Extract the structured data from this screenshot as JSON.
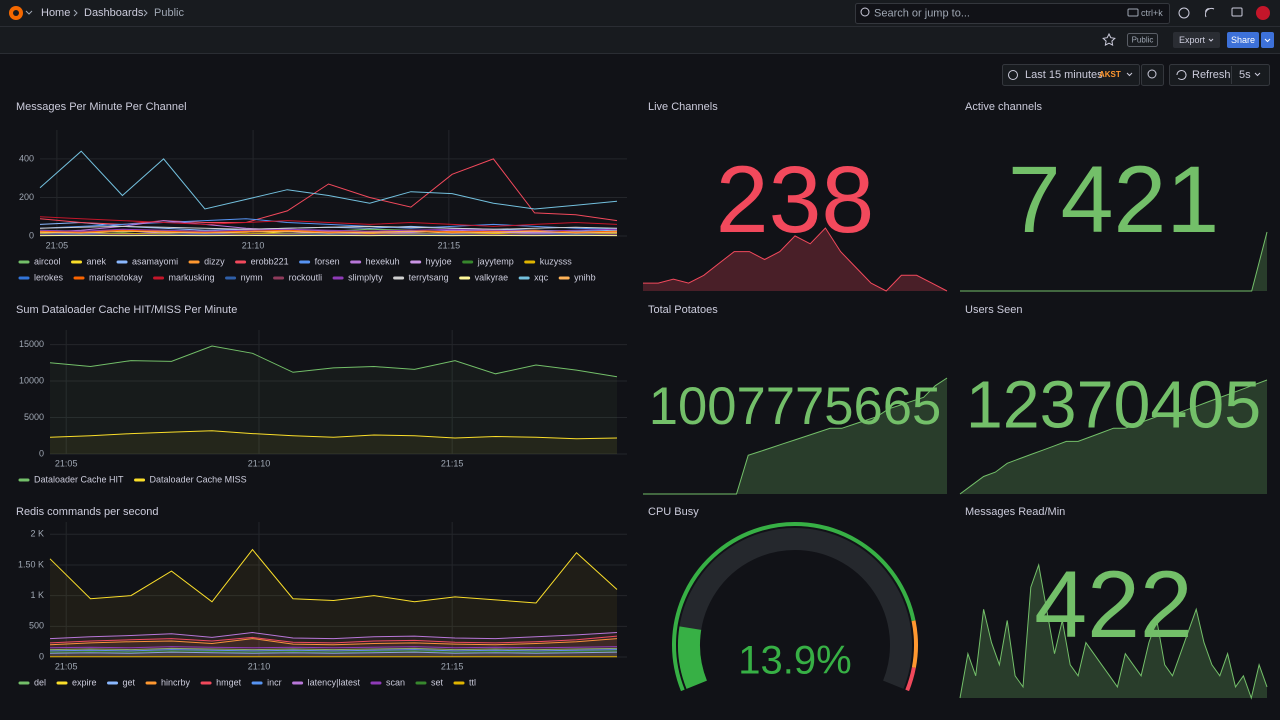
{
  "header": {
    "breadcrumbs": [
      "Home",
      "Dashboards",
      "Public"
    ],
    "search_placeholder": "Search or jump to...",
    "shortcut": "ctrl+k"
  },
  "toolbar": {
    "badge": "Public",
    "export": "Export",
    "share": "Share"
  },
  "time_picker": {
    "range": "Last 15 minutes",
    "timezone": "AKST",
    "refresh": "Refresh",
    "interval": "5s"
  },
  "panels": [
    {
      "type": "timeseries",
      "title": "Messages Per Minute Per Channel",
      "xlim": [
        0,
        14
      ],
      "xticks": [
        {
          "value": 0.41,
          "label": "21:05"
        },
        {
          "value": 5.17,
          "label": "21:10"
        },
        {
          "value": 9.92,
          "label": "21:15"
        }
      ],
      "ylim": [
        0,
        550
      ],
      "yticks": [
        0,
        200,
        400
      ],
      "fill": false,
      "series": [
        {
          "name": "aircool",
          "color": "#73bf69",
          "values": [
            30,
            25,
            20,
            30,
            25,
            20,
            30,
            25,
            35,
            30,
            20,
            25,
            30,
            25,
            20
          ]
        },
        {
          "name": "anek",
          "color": "#fade2a",
          "values": [
            15,
            20,
            10,
            15,
            20,
            25,
            15,
            10,
            20,
            15,
            10,
            15,
            20,
            15,
            10
          ]
        },
        {
          "name": "asamayomi",
          "color": "#8ab8ff",
          "values": [
            60,
            70,
            50,
            40,
            30,
            35,
            40,
            45,
            40,
            50,
            40,
            35,
            30,
            25,
            30
          ]
        },
        {
          "name": "dizzy",
          "color": "#ff9830",
          "values": [
            20,
            25,
            30,
            20,
            15,
            20,
            25,
            20,
            15,
            20,
            25,
            20,
            15,
            20,
            25
          ]
        },
        {
          "name": "erobb221",
          "color": "#f2495c",
          "values": [
            90,
            70,
            60,
            80,
            70,
            70,
            130,
            270,
            200,
            150,
            320,
            400,
            120,
            110,
            80
          ]
        },
        {
          "name": "forsen",
          "color": "#5794f2",
          "values": [
            40,
            50,
            60,
            70,
            80,
            90,
            70,
            60,
            50,
            40,
            50,
            60,
            50,
            40,
            35
          ]
        },
        {
          "name": "hexekuh",
          "color": "#b877d9",
          "values": [
            20,
            30,
            50,
            80,
            60,
            40,
            30,
            25,
            20,
            20,
            30,
            25,
            20,
            15,
            20
          ]
        },
        {
          "name": "hyyjoe",
          "color": "#ca95e5",
          "values": [
            10,
            15,
            10,
            20,
            15,
            10,
            15,
            20,
            10,
            15,
            10,
            20,
            15,
            10,
            15
          ]
        },
        {
          "name": "jayytemp",
          "color": "#37872d",
          "values": [
            5,
            8,
            6,
            5,
            7,
            6,
            5,
            8,
            6,
            5,
            7,
            6,
            5,
            8,
            6
          ]
        },
        {
          "name": "kuzysss",
          "color": "#e0b400",
          "values": [
            12,
            10,
            14,
            12,
            10,
            12,
            14,
            12,
            10,
            12,
            14,
            12,
            10,
            12,
            14
          ]
        },
        {
          "name": "lerokes",
          "color": "#3274d9",
          "values": [
            8,
            6,
            9,
            7,
            8,
            6,
            9,
            7,
            8,
            6,
            9,
            7,
            8,
            6,
            9
          ]
        },
        {
          "name": "marisnotokay",
          "color": "#fa6400",
          "values": [
            25,
            20,
            30,
            25,
            20,
            25,
            30,
            20,
            25,
            30,
            20,
            25,
            30,
            20,
            25
          ]
        },
        {
          "name": "markusking",
          "color": "#c4162a",
          "values": [
            100,
            90,
            80,
            70,
            60,
            70,
            80,
            70,
            60,
            70,
            60,
            50,
            60,
            70,
            60
          ]
        },
        {
          "name": "nymn",
          "color": "#2f5fa8",
          "values": [
            10,
            12,
            8,
            10,
            12,
            8,
            10,
            12,
            8,
            10,
            12,
            8,
            10,
            12,
            8
          ]
        },
        {
          "name": "rockoutli",
          "color": "#8f3b5b",
          "values": [
            5,
            4,
            6,
            5,
            4,
            6,
            5,
            4,
            6,
            5,
            4,
            6,
            5,
            4,
            6
          ]
        },
        {
          "name": "slimplyty",
          "color": "#8f3bb8",
          "values": [
            30,
            25,
            35,
            30,
            25,
            30,
            35,
            30,
            25,
            30,
            35,
            30,
            25,
            30,
            35
          ]
        },
        {
          "name": "terrytsang",
          "color": "#d0d0d0",
          "values": [
            40,
            45,
            50,
            45,
            40,
            35,
            40,
            45,
            50,
            45,
            40,
            35,
            40,
            45,
            40
          ]
        },
        {
          "name": "valkyrae",
          "color": "#fff899",
          "values": [
            2,
            3,
            2,
            3,
            2,
            3,
            2,
            3,
            2,
            3,
            2,
            3,
            2,
            3,
            2
          ]
        },
        {
          "name": "xqc",
          "color": "#73c0de",
          "values": [
            250,
            440,
            210,
            400,
            140,
            190,
            240,
            210,
            170,
            230,
            220,
            170,
            140,
            160,
            180
          ]
        },
        {
          "name": "ynihb",
          "color": "#ffb357",
          "values": [
            20,
            15,
            25,
            20,
            15,
            20,
            25,
            15,
            20,
            25,
            15,
            20,
            25,
            15,
            20
          ]
        }
      ]
    },
    {
      "type": "stat",
      "title": "Live Channels",
      "value": 238,
      "color": "#f2495c",
      "sparkline": [
        228,
        228,
        229,
        228,
        230,
        233,
        236,
        236,
        234,
        236,
        240,
        238,
        242,
        236,
        232,
        228,
        226,
        230,
        230,
        228,
        226
      ]
    },
    {
      "type": "stat",
      "title": "Active channels",
      "value": 7421,
      "color": "#73bf69",
      "sparkline": [
        7400,
        7400,
        7400,
        7400,
        7400,
        7400,
        7400,
        7400,
        7400,
        7400,
        7400,
        7400,
        7400,
        7400,
        7400,
        7400,
        7400,
        7400,
        7400,
        7400,
        7421
      ]
    },
    {
      "type": "timeseries",
      "title": "Sum Dataloader Cache HIT/MISS Per Minute",
      "xlim": [
        0,
        14
      ],
      "xticks": [
        {
          "value": 0.4,
          "label": "21:05"
        },
        {
          "value": 5.16,
          "label": "21:10"
        },
        {
          "value": 9.93,
          "label": "21:15"
        }
      ],
      "ylim": [
        0,
        17000
      ],
      "yticks": [
        0,
        5000,
        10000,
        15000
      ],
      "fill": true,
      "series": [
        {
          "name": "Dataloader Cache HIT",
          "color": "#73bf69",
          "values": [
            12500,
            12000,
            12800,
            12700,
            14800,
            13800,
            11200,
            11800,
            12000,
            11600,
            12800,
            11000,
            12200,
            11500,
            10600
          ]
        },
        {
          "name": "Dataloader Cache MISS",
          "color": "#fade2a",
          "values": [
            2300,
            2500,
            2800,
            3000,
            3200,
            2800,
            2500,
            2300,
            2600,
            2500,
            2200,
            2400,
            2300,
            2100,
            2200
          ]
        }
      ]
    },
    {
      "type": "stat",
      "title": "Total Potatoes",
      "value": 1007775665,
      "color": "#73bf69",
      "sparkline": [
        0,
        0,
        0,
        0,
        0,
        0,
        0,
        0,
        0,
        10,
        11,
        12,
        13,
        14,
        15,
        16,
        17,
        17,
        18,
        19,
        20,
        22,
        23,
        24,
        25,
        28,
        30
      ]
    },
    {
      "type": "stat",
      "title": "Users Seen",
      "value": 12370405,
      "color": "#73bf69",
      "sparkline": [
        0,
        2,
        4,
        5,
        7,
        8,
        9,
        10,
        11,
        12,
        12,
        13,
        14,
        15,
        15,
        16,
        17,
        18,
        18,
        19,
        20,
        21,
        22,
        23,
        24,
        25,
        26
      ]
    },
    {
      "type": "timeseries",
      "title": "Redis commands per second",
      "xlim": [
        0,
        14
      ],
      "xticks": [
        {
          "value": 0.4,
          "label": "21:05"
        },
        {
          "value": 5.16,
          "label": "21:10"
        },
        {
          "value": 9.93,
          "label": "21:15"
        }
      ],
      "ylim": [
        0,
        2200
      ],
      "yticks": [
        0,
        500,
        {
          "value": 1000,
          "label": "1 K"
        },
        {
          "value": 1500,
          "label": "1.50 K"
        },
        {
          "value": 2000,
          "label": "2 K"
        }
      ],
      "fill": true,
      "series": [
        {
          "name": "del",
          "color": "#73bf69",
          "values": [
            120,
            130,
            120,
            140,
            130,
            120,
            130,
            120,
            130,
            140,
            120,
            130,
            120,
            130,
            140
          ]
        },
        {
          "name": "expire",
          "color": "#fade2a",
          "values": [
            1600,
            950,
            1000,
            1400,
            900,
            1750,
            950,
            920,
            1000,
            900,
            980,
            930,
            880,
            1700,
            1100
          ]
        },
        {
          "name": "get",
          "color": "#8ab8ff",
          "values": [
            60,
            70,
            60,
            80,
            70,
            60,
            70,
            60,
            70,
            80,
            60,
            70,
            60,
            70,
            80
          ]
        },
        {
          "name": "hincrby",
          "color": "#ff9830",
          "values": [
            200,
            230,
            250,
            260,
            220,
            300,
            210,
            200,
            220,
            230,
            210,
            200,
            220,
            250,
            300
          ]
        },
        {
          "name": "hmget",
          "color": "#f2495c",
          "values": [
            230,
            260,
            280,
            300,
            260,
            320,
            240,
            230,
            260,
            270,
            240,
            230,
            250,
            280,
            340
          ]
        },
        {
          "name": "incr",
          "color": "#5794f2",
          "values": [
            100,
            110,
            100,
            120,
            110,
            100,
            110,
            100,
            110,
            120,
            100,
            110,
            100,
            110,
            120
          ]
        },
        {
          "name": "latency|latest",
          "color": "#b877d9",
          "values": [
            300,
            330,
            350,
            380,
            320,
            400,
            310,
            300,
            330,
            340,
            310,
            300,
            330,
            360,
            400
          ]
        },
        {
          "name": "scan",
          "color": "#8f3bb8",
          "values": [
            150,
            160,
            150,
            170,
            160,
            150,
            160,
            150,
            160,
            170,
            150,
            160,
            150,
            160,
            170
          ]
        },
        {
          "name": "set",
          "color": "#37872d",
          "values": [
            80,
            90,
            80,
            100,
            90,
            80,
            90,
            80,
            90,
            100,
            80,
            90,
            80,
            90,
            100
          ]
        },
        {
          "name": "ttl",
          "color": "#e0b400",
          "values": [
            5,
            5,
            5,
            5,
            5,
            5,
            5,
            5,
            5,
            5,
            5,
            5,
            5,
            5,
            5
          ]
        }
      ]
    },
    {
      "type": "gauge",
      "title": "CPU Busy",
      "value": 13.9,
      "value_label": "13.9%",
      "min": 0,
      "max": 100,
      "color": "#37b045",
      "thresholds": [
        {
          "value": 0,
          "color": "#37b045"
        },
        {
          "value": 85,
          "color": "#ff9830"
        },
        {
          "value": 95,
          "color": "#f2495c"
        }
      ]
    },
    {
      "type": "stat",
      "title": "Messages Read/Min",
      "value": 422,
      "color": "#73bf69",
      "sparkline": [
        20,
        40,
        30,
        60,
        45,
        35,
        55,
        30,
        25,
        70,
        80,
        60,
        40,
        55,
        35,
        30,
        45,
        40,
        35,
        30,
        25,
        40,
        35,
        30,
        45,
        55,
        35,
        30,
        40,
        50,
        60,
        45,
        35,
        30,
        40,
        25,
        30,
        20,
        35,
        25
      ]
    }
  ]
}
